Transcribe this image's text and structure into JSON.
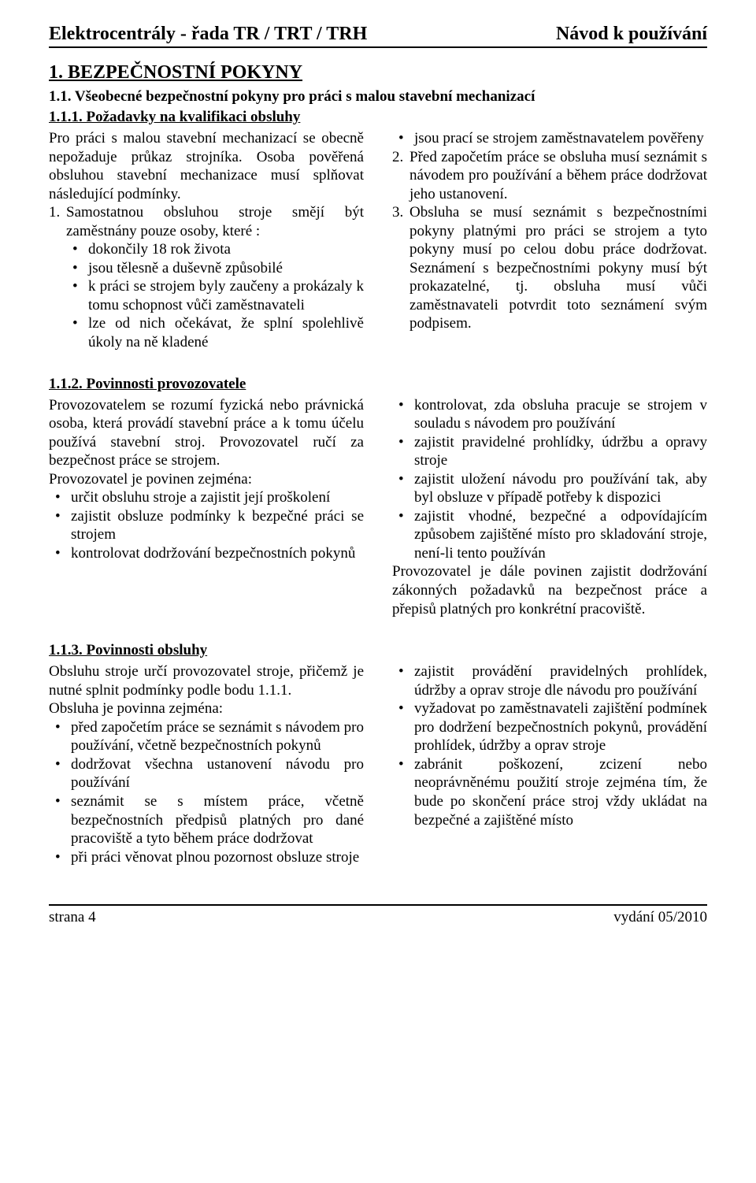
{
  "header": {
    "left": "Elektrocentrály - řada TR / TRT / TRH",
    "right": "Návod k používání"
  },
  "s1": {
    "title": "1.    BEZPEČNOSTNÍ POKYNY",
    "subtitle": "1.1.  Všeobecné bezpečnostní pokyny pro práci s malou stavební mechanizací"
  },
  "s111": {
    "heading": "1.1.1.  Požadavky na kvalifikaci obsluhy",
    "leftIntro": "Pro práci s malou stavební mechanizací se obecně nepožaduje průkaz strojníka. Osoba pověřená obsluhou stavební mechanizace musí splňovat následující podmínky.",
    "leftNum1": "Samostatnou obsluhou stroje smějí být zaměstnány pouze osoby, které :",
    "leftBullets": [
      "dokončily 18 rok života",
      "jsou tělesně a duševně způsobilé",
      "k práci se strojem byly zaučeny a prokázaly k tomu schopnost vůči zaměstnavateli",
      "lze od nich očekávat, že splní spolehlivě úkoly na ně kladené"
    ],
    "rightBullet": "jsou prací se strojem zaměstnavatelem pověřeny",
    "rightNum2": "Před započetím práce se obsluha musí seznámit s návodem pro používání a během práce dodržovat jeho ustanovení.",
    "rightNum3": "Obsluha se musí seznámit s bezpečnostními pokyny platnými pro práci se strojem a tyto pokyny musí po celou dobu práce dodržovat. Seznámení s bezpečnostními pokyny musí být prokazatelné, tj. obsluha musí vůči zaměstnavateli potvrdit toto seznámení svým podpisem."
  },
  "s112": {
    "heading": "1.1.2.  Povinnosti provozovatele",
    "leftIntro": "Provozovatelem se rozumí fyzická nebo právnická osoba, která provádí stavební práce a k tomu účelu používá stavební stroj. Provozovatel ručí za bezpečnost práce se strojem.",
    "leftIntro2": "Provozovatel je povinen zejména:",
    "leftBullets": [
      "určit obsluhu stroje a zajistit její proškolení",
      "zajistit obsluze podmínky k bezpečné práci se strojem",
      "kontrolovat dodržování bezpečnostních pokynů"
    ],
    "rightBullets": [
      "kontrolovat, zda obsluha pracuje se strojem v souladu s návodem pro používání",
      "zajistit pravidelné prohlídky, údržbu a opravy stroje",
      "zajistit uložení návodu pro používání tak, aby byl obsluze v případě potřeby k dispozici",
      "zajistit vhodné, bezpečné a odpovídajícím způsobem zajištěné místo pro skladování stroje, není-li tento používán"
    ],
    "rightTail": "Provozovatel je dále povinen zajistit dodržování zákonných požadavků na bezpečnost práce a přepisů platných pro konkrétní pracoviště."
  },
  "s113": {
    "heading": "1.1.3.  Povinnosti obsluhy",
    "leftIntro": "Obsluhu stroje určí provozovatel stroje, přičemž je nutné splnit podmínky podle bodu 1.1.1.",
    "leftIntro2": "Obsluha je povinna zejména:",
    "leftBullets": [
      "před započetím práce se seznámit s návodem pro používání, včetně bezpečnostních pokynů",
      "dodržovat všechna ustanovení návodu pro používání",
      "seznámit se s místem práce, včetně bezpečnostních předpisů platných pro dané pracoviště a tyto během práce dodržovat",
      "při práci věnovat plnou pozornost obsluze stroje"
    ],
    "rightBullets": [
      "zajistit provádění pravidelných prohlídek, údržby a oprav stroje dle návodu pro používání",
      "vyžadovat po zaměstnavateli zajištění podmínek pro dodržení bezpečnostních pokynů, provádění prohlídek, údržby a oprav stroje",
      "zabránit poškození, zcizení nebo neoprávněnému použití stroje zejména tím, že bude po skončení práce stroj vždy ukládat na bezpečné a zajištěné místo"
    ]
  },
  "footer": {
    "left": "strana 4",
    "right": "vydání 05/2010"
  }
}
